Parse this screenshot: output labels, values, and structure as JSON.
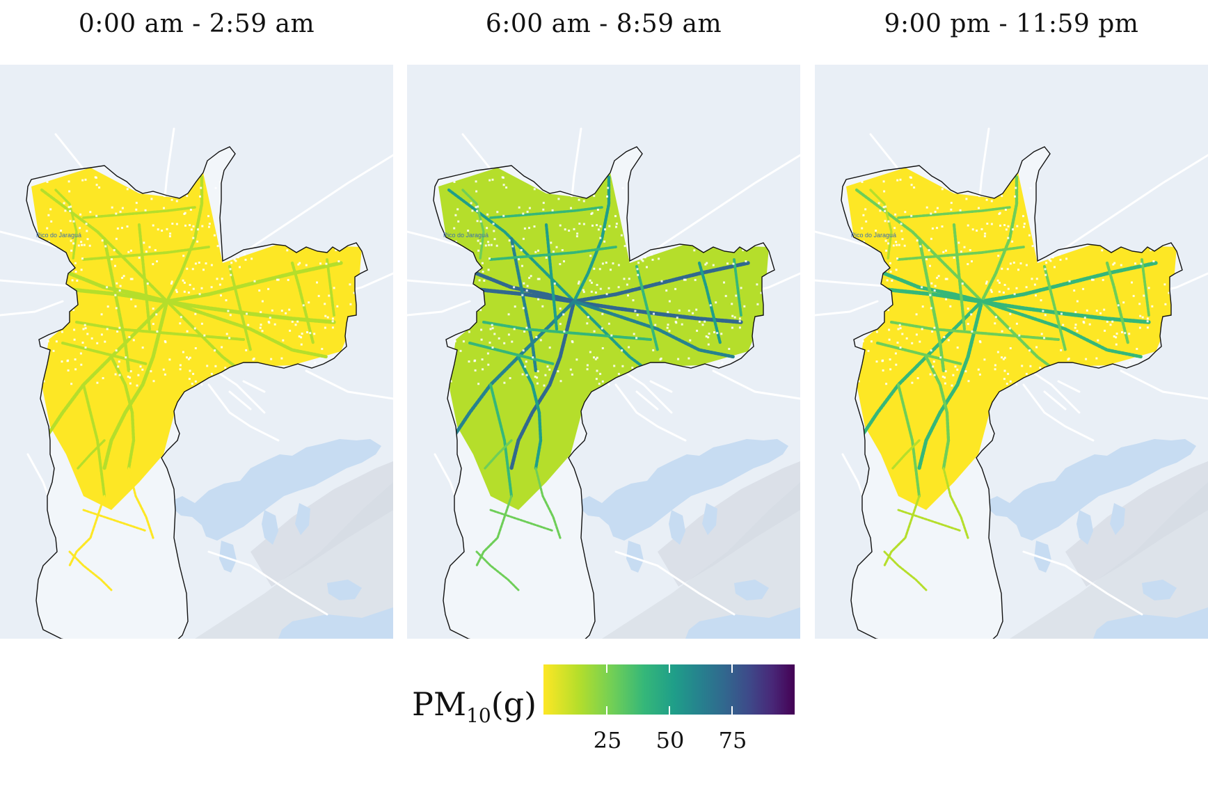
{
  "panels": [
    {
      "title": "0:00 am - 2:59 am",
      "intensity": 0.12
    },
    {
      "title": "6:00 am - 8:59 am",
      "intensity": 0.55
    },
    {
      "title": "9:00 pm - 11:59 pm",
      "intensity": 0.3
    }
  ],
  "map_label": "Pico do Jaraguá",
  "legend": {
    "title_main": "PM",
    "title_sub": "10",
    "title_unit": "(g)",
    "ticks": [
      "25",
      "50",
      "75"
    ],
    "tick_values": [
      25,
      50,
      75
    ],
    "range": [
      0,
      100
    ],
    "colors": [
      "#fde725",
      "#b5de2b",
      "#6ece58",
      "#35b779",
      "#1f9e89",
      "#26828e",
      "#31688e",
      "#3e4989",
      "#482878",
      "#440154"
    ]
  }
}
